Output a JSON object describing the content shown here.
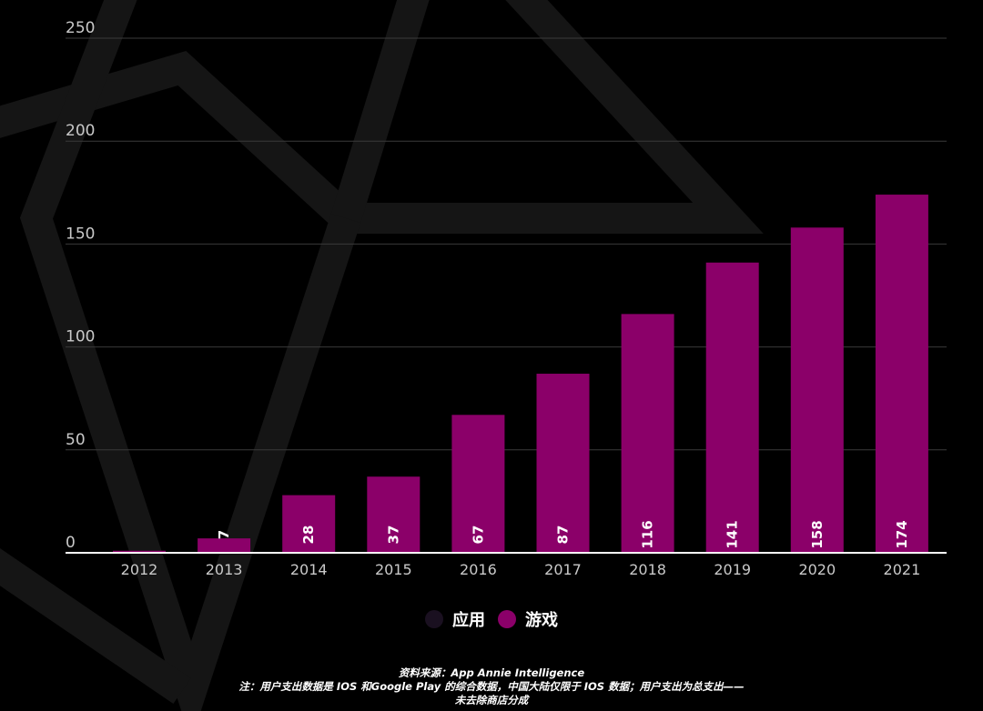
{
  "chart_data": {
    "type": "bar",
    "categories": [
      "2012",
      "2013",
      "2014",
      "2015",
      "2016",
      "2017",
      "2018",
      "2019",
      "2020",
      "2021"
    ],
    "series": [
      {
        "name": "应用",
        "values": [
          null,
          null,
          null,
          null,
          null,
          null,
          null,
          null,
          null,
          null
        ],
        "color": "#1a1020"
      },
      {
        "name": "游戏",
        "values": [
          1,
          7,
          28,
          37,
          67,
          87,
          116,
          141,
          158,
          174
        ],
        "color": "#8b0069"
      }
    ],
    "bar_labels": [
      "",
      "7",
      "28",
      "37",
      "67",
      "87",
      "116",
      "141",
      "158",
      "174"
    ],
    "yticks": [
      0,
      50,
      100,
      150,
      200,
      250
    ],
    "ylim": [
      0,
      250
    ],
    "grid": true,
    "legend_position": "bottom-center"
  },
  "legend": {
    "items": [
      {
        "label": "应用",
        "color": "#1a1020"
      },
      {
        "label": "游戏",
        "color": "#8b0069"
      }
    ]
  },
  "footer": {
    "line1": "资料来源：App Annie Intelligence",
    "line2": "注：用户支出数据是 IOS 和Google Play 的综合数据，中国大陆仅限于 IOS 数据；用户支出为总支出——",
    "line3": "未去除商店分成"
  },
  "colors": {
    "background": "#000000",
    "decoration": "#141414",
    "grid": "#3a3a3a",
    "axis": "#ffffff"
  }
}
